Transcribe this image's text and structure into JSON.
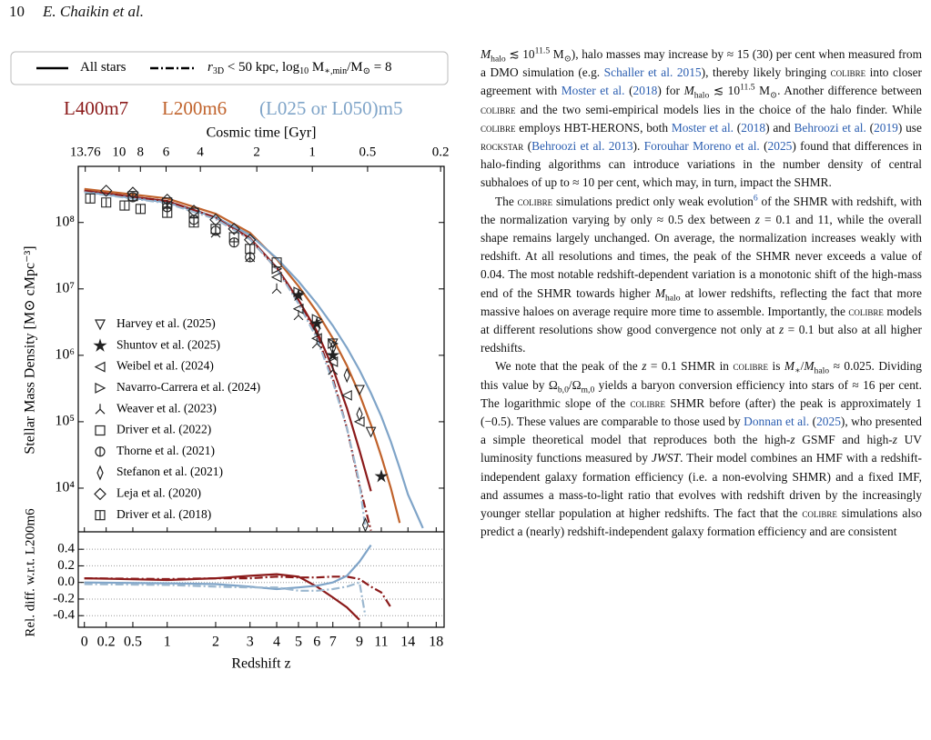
{
  "header": {
    "page_number": "10",
    "authors": "E. Chaikin et al."
  },
  "figure": {
    "style_legend": [
      {
        "label": [
          "All stars"
        ],
        "dash": "solid"
      },
      {
        "label": [
          "r",
          "3D",
          " < 50 kpc, log",
          "10",
          " M",
          "∗,min",
          "/M",
          "⊙",
          " = 8"
        ],
        "dash": "dashdot"
      }
    ]
  },
  "chart_data": [
    {
      "type": "line",
      "x2label": "Cosmic time [Gyr]",
      "x2ticks": [
        13.76,
        10,
        8,
        6,
        4,
        2,
        1,
        0.5,
        0.2
      ],
      "ylabel": "Stellar Mass Density [M⊙ cMpc⁻³]",
      "log_y": true,
      "xlim": [
        -0.05,
        19.3
      ],
      "ylim": [
        2200,
        700000000
      ],
      "yticks": [
        {
          "value": 10000,
          "label": "10⁴"
        },
        {
          "value": 100000,
          "label": "10⁵"
        },
        {
          "value": 1000000,
          "label": "10⁶"
        },
        {
          "value": 10000000,
          "label": "10⁷"
        },
        {
          "value": 100000000,
          "label": "10⁸"
        }
      ],
      "series": [
        {
          "name": "L400m7",
          "color": "#8b1a1a",
          "dash": "solid",
          "x": [
            0,
            1,
            2,
            3,
            4,
            5,
            6,
            7,
            8,
            9,
            10
          ],
          "values": [
            300000000,
            210000000,
            120000000,
            58000000,
            21000000,
            6800000,
            2300000,
            640000,
            160000,
            37000,
            9000
          ]
        },
        {
          "name": "L200m6",
          "color": "#c0622b",
          "dash": "solid",
          "x": [
            0,
            1,
            2,
            3,
            4,
            5,
            6,
            7,
            8,
            9,
            10,
            11,
            12,
            13
          ],
          "values": [
            320000000,
            230000000,
            135000000,
            70000000,
            28000000,
            11000000,
            4500000,
            1800000,
            700000,
            260000,
            90000,
            30000,
            10000,
            3000
          ]
        },
        {
          "name": "(L025 or L050)m5",
          "color": "#7fa4c8",
          "dash": "solid",
          "x": [
            0,
            1,
            2,
            3,
            4,
            5,
            6,
            7,
            8,
            9,
            10,
            11,
            12,
            13,
            14,
            16
          ],
          "values": [
            290000000,
            200000000,
            120000000,
            65000000,
            29000000,
            13000000,
            6000000,
            2800000,
            1300000,
            600000,
            270000,
            120000,
            50000,
            20000,
            8000,
            2500
          ]
        },
        {
          "color": "#8b1a1a",
          "dash": "dashdot",
          "x": [
            0,
            1,
            2,
            3,
            4,
            5,
            6,
            7,
            8,
            9,
            10
          ],
          "values": [
            300000000,
            210000000,
            118000000,
            56000000,
            20000000,
            6500000,
            2000000,
            450000,
            80000,
            11000,
            2300
          ]
        },
        {
          "color": "#9bb7cf",
          "dash": "dashdot",
          "x": [
            0,
            1,
            2,
            3,
            4,
            5,
            6,
            7,
            8,
            9,
            9.5
          ],
          "values": [
            285000000,
            195000000,
            112000000,
            56000000,
            20000000,
            6000000,
            1800000,
            400000,
            80000,
            12000,
            2500
          ]
        }
      ],
      "observations": [
        {
          "name": "Harvey et al. (2025)",
          "marker": "triangle-down",
          "x": [
            7,
            9,
            10
          ],
          "values": [
            1500000,
            300000,
            70000
          ]
        },
        {
          "name": "Shuntov et al. (2025)",
          "marker": "star",
          "x": [
            5,
            6,
            7,
            11
          ],
          "values": [
            8000000,
            3000000,
            1000000,
            15000
          ]
        },
        {
          "name": "Weibel et al. (2024)",
          "marker": "triangle-left",
          "x": [
            4,
            5,
            6,
            7,
            8,
            9
          ],
          "values": [
            15000000,
            5000000,
            1800000,
            800000,
            250000,
            100000
          ]
        },
        {
          "name": "Navarro-Carrera et al. (2024)",
          "marker": "triangle-right",
          "x": [
            4,
            5,
            6,
            7
          ],
          "values": [
            20000000,
            9000000,
            3500000,
            1500000
          ]
        },
        {
          "name": "Weaver et al. (2023)",
          "marker": "tri",
          "x": [
            1,
            2,
            3,
            4,
            5,
            6,
            7
          ],
          "values": [
            180000000,
            70000000,
            30000000,
            10000000,
            4000000,
            1500000,
            600000
          ]
        },
        {
          "name": "Driver et al. (2022)",
          "marker": "square",
          "x": [
            0.5,
            1,
            1.5,
            2.5,
            4
          ],
          "values": [
            250000000,
            200000000,
            140000000,
            60000000,
            25000000
          ]
        },
        {
          "name": "Thorne et al. (2021)",
          "marker": "circle",
          "x": [
            0.5,
            1,
            1.5,
            2,
            2.5,
            3
          ],
          "values": [
            240000000,
            170000000,
            110000000,
            75000000,
            50000000,
            30000000
          ]
        },
        {
          "name": "Stefanon et al. (2021)",
          "marker": "thin-diamond",
          "x": [
            6,
            7,
            8,
            9,
            9.5
          ],
          "values": [
            2500000,
            1300000,
            500000,
            130000,
            2800
          ]
        },
        {
          "name": "Leja et al. (2020)",
          "marker": "diamond",
          "x": [
            0.2,
            0.5,
            1,
            1.5,
            2,
            2.5,
            3
          ],
          "values": [
            300000000,
            280000000,
            220000000,
            150000000,
            110000000,
            80000000,
            55000000
          ]
        },
        {
          "name": "Driver et al. (2018)",
          "marker": "square-split",
          "x": [
            0.05,
            0.2,
            0.4,
            0.6,
            1,
            1.5,
            2,
            3
          ],
          "values": [
            230000000,
            200000000,
            180000000,
            160000000,
            140000000,
            100000000,
            80000000,
            40000000
          ]
        }
      ]
    },
    {
      "type": "line",
      "xlabel": "Redshift z",
      "ylabel": "Rel. diff. w.r.t. L200m6",
      "xlim": [
        -0.05,
        19.3
      ],
      "xticks": [
        0,
        0.2,
        0.5,
        1,
        2,
        3,
        4,
        5,
        6,
        7,
        9,
        11,
        14,
        18
      ],
      "ylim": [
        -0.54,
        0.61
      ],
      "yticks": [
        -0.4,
        -0.2,
        {
          "value": 0,
          "label": "0.0"
        },
        0.2,
        0.4
      ],
      "grid": true,
      "series": [
        {
          "color": "#8b1a1a",
          "dash": "solid",
          "x": [
            0,
            1,
            2,
            3,
            4,
            5,
            6,
            7,
            8,
            9
          ],
          "values": [
            0.05,
            0.03,
            0.05,
            0.08,
            0.1,
            0.07,
            -0.05,
            -0.18,
            -0.3,
            -0.45
          ]
        },
        {
          "color": "#8b1a1a",
          "dash": "dashdot",
          "x": [
            0,
            1,
            2,
            3,
            4,
            5,
            6,
            7,
            8,
            9,
            10,
            11,
            12
          ],
          "values": [
            0.05,
            0.04,
            0.05,
            0.05,
            0.07,
            0.06,
            0.06,
            0.07,
            0.07,
            0.04,
            -0.05,
            -0.12,
            -0.3
          ]
        },
        {
          "color": "#7fa4c8",
          "dash": "solid",
          "x": [
            0,
            1,
            2,
            3,
            4,
            5,
            6,
            7,
            8,
            9,
            10
          ],
          "values": [
            0,
            -0.01,
            -0.02,
            -0.05,
            -0.08,
            -0.06,
            -0.04,
            0,
            0.08,
            0.25,
            0.45
          ]
        },
        {
          "color": "#9bb7cf",
          "dash": "dashdot",
          "x": [
            0,
            1,
            2,
            3,
            4,
            5,
            6,
            7,
            8,
            9,
            9.5
          ],
          "values": [
            -0.02,
            -0.03,
            -0.05,
            -0.06,
            -0.06,
            -0.1,
            -0.1,
            -0.08,
            -0.05,
            0,
            -0.4
          ]
        }
      ]
    }
  ],
  "body": {
    "paragraphs": [
      [
        "M",
        "halo",
        " ≲ 10",
        "11.5",
        " M",
        "⊙",
        "), halo masses may increase by ≈ 15 (30) per cent when measured from a DMO simulation (e.g. ",
        "Schaller et al. 2015",
        "), thereby likely bringing ",
        "colibre",
        " into closer agreement with ",
        "Moster et al.",
        " (",
        "2018",
        ") for ",
        "M",
        "halo",
        " ≲ 10",
        "11.5",
        " M",
        "⊙",
        ". Another difference between ",
        "colibre",
        " and the two semi-empirical models lies in the choice of the halo finder. While ",
        "colibre",
        " employs HBT-HERONS, both ",
        "Moster et al.",
        " (",
        "2018",
        ") and ",
        "Behroozi et al.",
        " (",
        "2019",
        ") use ",
        "rockstar",
        " (",
        "Behroozi et al. 2013",
        "). ",
        "Forouhar Moreno et al.",
        " (",
        "2025",
        ") found that differences in halo-finding algorithms can introduce variations in the number density of central subhaloes of up to ≈ 10 per cent, which may, in turn, impact the SHMR."
      ],
      [
        "The ",
        "colibre",
        " simulations predict only weak evolution",
        "6",
        " of the SHMR with redshift, with the normalization varying by only ≈ 0.5 dex between ",
        "z",
        " = 0.1 and 11, while the overall shape remains largely unchanged. On average, the normalization increases weakly with redshift. At all resolutions and times, the peak of the SHMR never exceeds a value of 0.04. The most notable redshift-dependent variation is a monotonic shift of the high-mass end of the SHMR towards higher ",
        "M",
        "halo",
        " at lower redshifts, reflecting the fact that more massive haloes on average require more time to assemble. Importantly, the ",
        "colibre",
        " models at different resolutions show good convergence not only at ",
        "z",
        " = 0.1 but also at all higher redshifts."
      ],
      [
        "We note that the peak of the ",
        "z",
        " = 0.1 SHMR in ",
        "colibre",
        " is ",
        "M",
        "∗",
        "/",
        "M",
        "halo",
        " ≈ 0.025. Dividing this value by Ω",
        "b,0",
        "/Ω",
        "m,0",
        " yields a baryon conversion efficiency into stars of ≈ 16 per cent. The logarithmic slope of the ",
        "colibre",
        " SHMR before (after) the peak is approximately 1 (−0.5). These values are comparable to those used by ",
        "Donnan et al.",
        " (",
        "2025",
        "), who presented a simple theoretical model that reproduces both the high-",
        "z",
        " GSMF and high-",
        "z",
        " UV luminosity functions measured by ",
        "JWST",
        ". Their model combines an HMF with a redshift-independent galaxy formation efficiency (i.e. a non-evolving SHMR) and a fixed IMF, and assumes a mass-to-light ratio that evolves with redshift driven by the increasingly younger stellar population at higher redshifts. The fact that the ",
        "colibre",
        " simulations also predict a (nearly) redshift-independent galaxy formation efficiency and are consistent"
      ]
    ]
  }
}
